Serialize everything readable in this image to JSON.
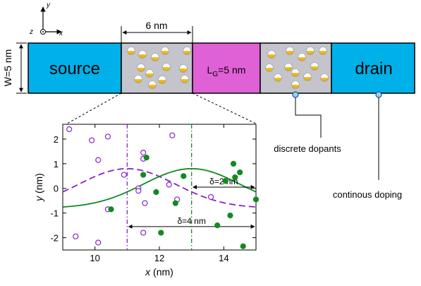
{
  "device": {
    "source_label": "source",
    "drain_label": "drain",
    "gate_label_main": "L",
    "gate_label_sub": "G",
    "gate_label_rest": "=5 nm",
    "width_label": "W=5 nm",
    "spacer_width_label": "6 nm",
    "colors": {
      "contact": "#00b0e8",
      "gate": "#e060d6",
      "spacer": "#c4c4cc",
      "dopant_top": "#ffffff",
      "dopant_bottom": "#f2c52a"
    }
  },
  "axes_icon": {
    "y": "y",
    "x": "x",
    "z": "z"
  },
  "annotations": {
    "discrete_dopants": "discrete dopants",
    "continuous_doping": "continous doping"
  },
  "chart_data": {
    "type": "scatter",
    "xlabel": "x (nm)",
    "ylabel": "y (nm)",
    "xlim": [
      9,
      15
    ],
    "ylim": [
      -2.5,
      2.6
    ],
    "xticks": [
      "10",
      "12",
      "14"
    ],
    "yticks": [
      "2",
      "1",
      "0",
      "-1",
      "-2"
    ],
    "series": [
      {
        "marker": "open-circle",
        "color": "#8a22c8",
        "points": [
          [
            9.2,
            2.4
          ],
          [
            10.4,
            2.1
          ],
          [
            9.9,
            1.95
          ],
          [
            11.5,
            1.45
          ],
          [
            11.5,
            1.2
          ],
          [
            10.1,
            1.15
          ],
          [
            10.9,
            0.55
          ],
          [
            11.35,
            0.0
          ],
          [
            10.4,
            -0.85
          ],
          [
            12.55,
            -0.45
          ],
          [
            11.35,
            -0.1
          ],
          [
            12.4,
            2.15
          ],
          [
            10.1,
            -2.2
          ],
          [
            11.5,
            -1.8
          ],
          [
            9.4,
            -1.95
          ],
          [
            12.3,
            0.15
          ],
          [
            11.55,
            -0.6
          ],
          [
            13.6,
            -0.35
          ]
        ]
      },
      {
        "marker": "filled-circle",
        "color": "#118a22",
        "points": [
          [
            11.6,
            1.25
          ],
          [
            14.3,
            1.0
          ],
          [
            14.5,
            0.65
          ],
          [
            12.75,
            0.5
          ],
          [
            14.35,
            0.45
          ],
          [
            11.5,
            0.55
          ],
          [
            14.05,
            0.3
          ],
          [
            15.0,
            -0.45
          ],
          [
            10.5,
            -0.85
          ],
          [
            13.8,
            -1.5
          ],
          [
            14.2,
            -1.1
          ],
          [
            12.5,
            -0.6
          ],
          [
            12.05,
            -1.8
          ],
          [
            14.6,
            -2.35
          ],
          [
            11.9,
            -0.15
          ]
        ]
      }
    ],
    "curves": [
      {
        "style": "dashed",
        "color": "#8a22c8",
        "center": 11.0,
        "amplitude": 1.6,
        "offset": -0.8,
        "sigma": 1.5
      },
      {
        "style": "solid",
        "color": "#118a22",
        "center": 13.0,
        "amplitude": 1.6,
        "offset": -0.8,
        "sigma": 1.5
      }
    ],
    "vlines": [
      {
        "x": 11.0,
        "color": "#8a22c8"
      },
      {
        "x": 13.0,
        "color": "#118a22"
      }
    ],
    "arrows": [
      {
        "label": "δ=2 nm",
        "from": 13.0,
        "to": 15.0,
        "y": 0.05
      },
      {
        "label": "δ=4 nm",
        "from": 11.0,
        "to": 15.0,
        "y": -1.55
      }
    ]
  }
}
